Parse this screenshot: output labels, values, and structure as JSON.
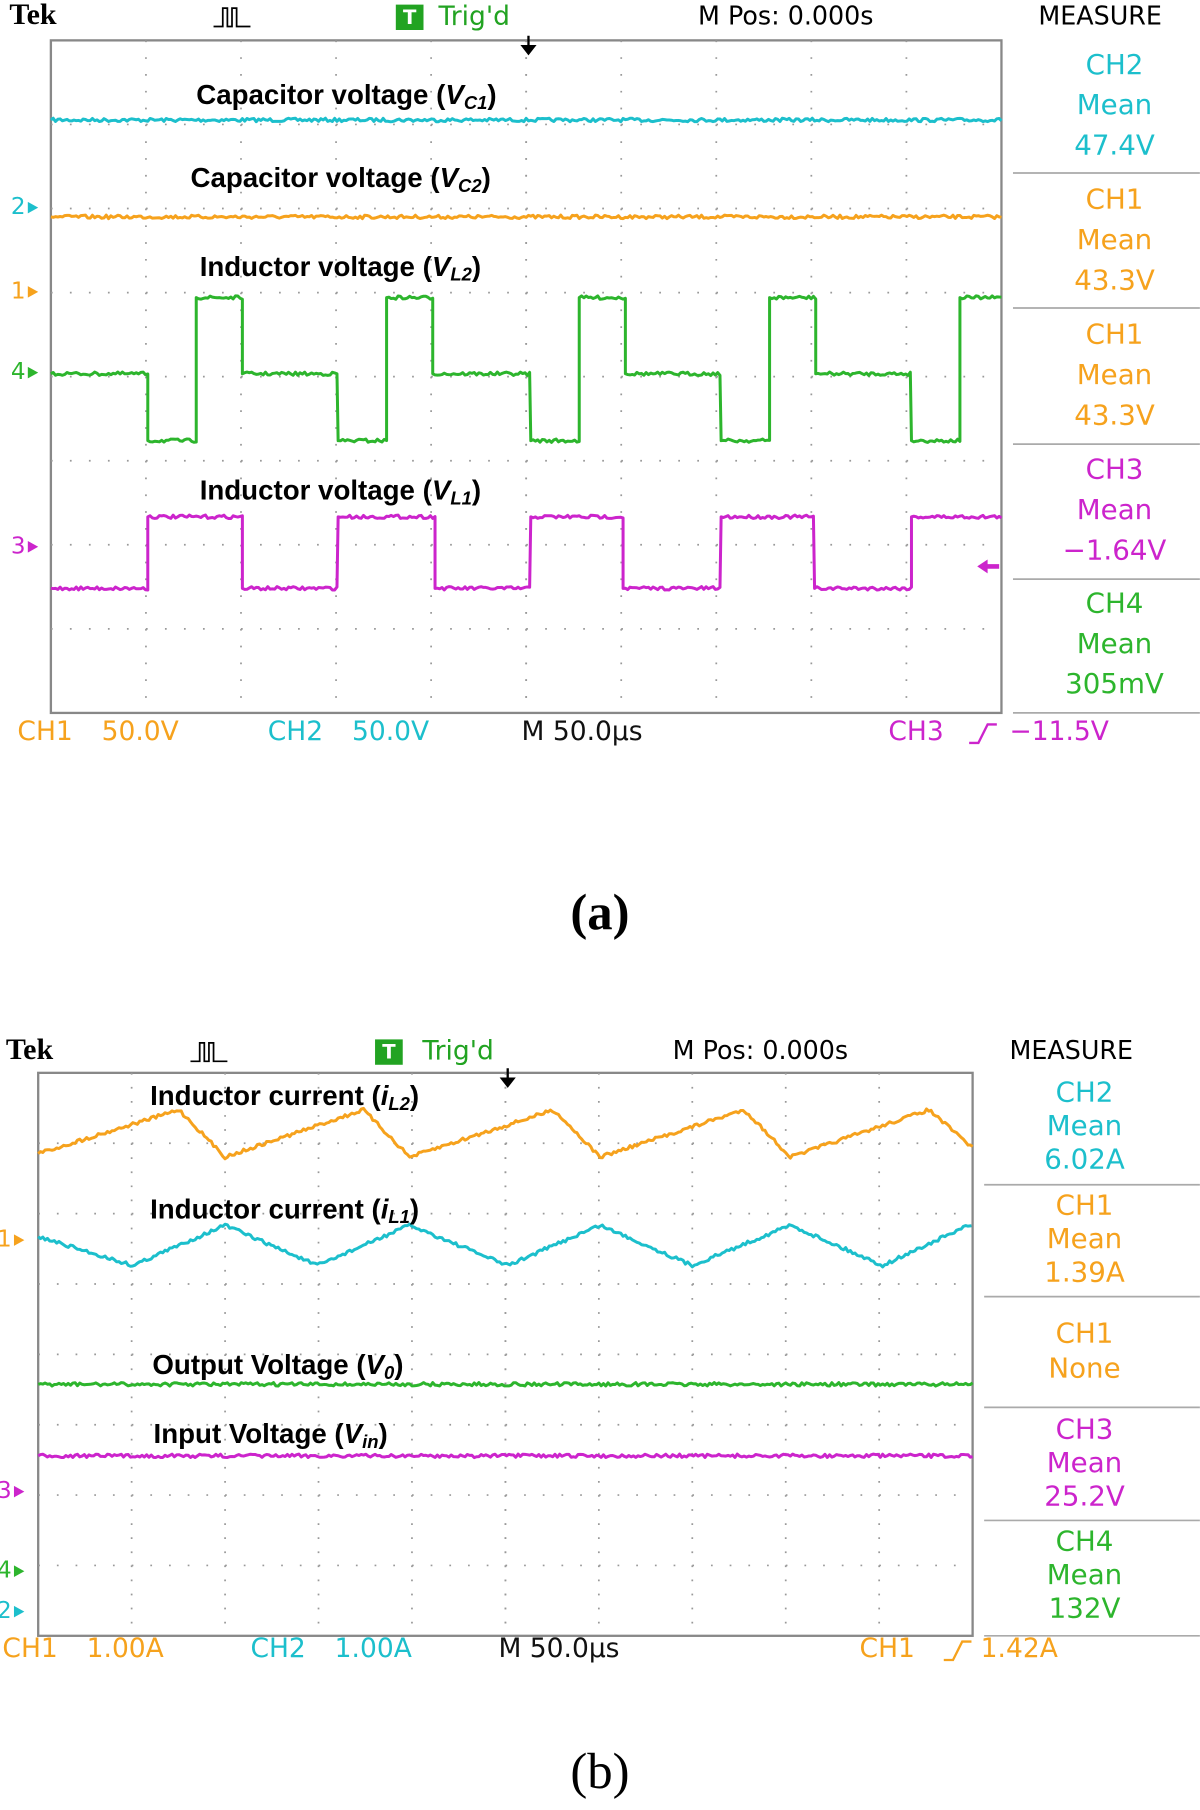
{
  "panels": [
    {
      "header": {
        "brand": "Tek",
        "trig_mark": "T",
        "trigger": "Trig'd",
        "mpos": "M Pos: 0.000s",
        "measure": "MEASURE"
      },
      "labels": [
        {
          "text": "Capacitor voltage (",
          "var": "V",
          "sub": "C1",
          "end": ")"
        },
        {
          "text": "Capacitor voltage (",
          "var": "V",
          "sub": "C2",
          "end": ")"
        },
        {
          "text": "Inductor voltage (",
          "var": "V",
          "sub": "L2",
          "end": ")"
        },
        {
          "text": "Inductor voltage (",
          "var": "V",
          "sub": "L1",
          "end": ")"
        }
      ],
      "channel_markers": [
        "2",
        "1",
        "4",
        "3"
      ],
      "measures": [
        {
          "channel": "CH2",
          "stat": "Mean",
          "value": "47.4V"
        },
        {
          "channel": "CH1",
          "stat": "Mean",
          "value": "43.3V"
        },
        {
          "channel": "CH1",
          "stat": "Mean",
          "value": "43.3V"
        },
        {
          "channel": "CH3",
          "stat": "Mean",
          "value": "−1.64V"
        },
        {
          "channel": "CH4",
          "stat": "Mean",
          "value": "305mV"
        }
      ],
      "footer": [
        "CH1",
        "50.0V",
        "CH2",
        "50.0V",
        "M 50.0µs",
        "CH3",
        "−11.5V"
      ],
      "caption": "(a)"
    },
    {
      "header": {
        "brand": "Tek",
        "trig_mark": "T",
        "trigger": "Trig'd",
        "mpos": "M Pos: 0.000s",
        "measure": "MEASURE"
      },
      "labels": [
        {
          "text": "Inductor current (",
          "var": "i",
          "sub": "L2",
          "end": ")"
        },
        {
          "text": "Inductor current (",
          "var": "i",
          "sub": "L1",
          "end": ")"
        },
        {
          "text": "Output Voltage (",
          "var": "V",
          "sub": "0",
          "end": ")"
        },
        {
          "text": "Input Voltage (",
          "var": "V",
          "sub": "in",
          "end": ")"
        }
      ],
      "channel_markers": [
        "1",
        "3",
        "4",
        "2"
      ],
      "measures": [
        {
          "channel": "CH2",
          "stat": "Mean",
          "value": "6.02A"
        },
        {
          "channel": "CH1",
          "stat": "Mean",
          "value": "1.39A"
        },
        {
          "channel": "CH1",
          "stat": "None"
        },
        {
          "channel": "CH3",
          "stat": "Mean",
          "value": "25.2V"
        },
        {
          "channel": "CH4",
          "stat": "Mean",
          "value": "132V"
        }
      ],
      "footer": [
        "CH1",
        "1.00A",
        "CH2",
        "1.00A",
        "M 50.0µs",
        "CH1",
        "1.42A"
      ],
      "caption": "(b)"
    }
  ]
}
